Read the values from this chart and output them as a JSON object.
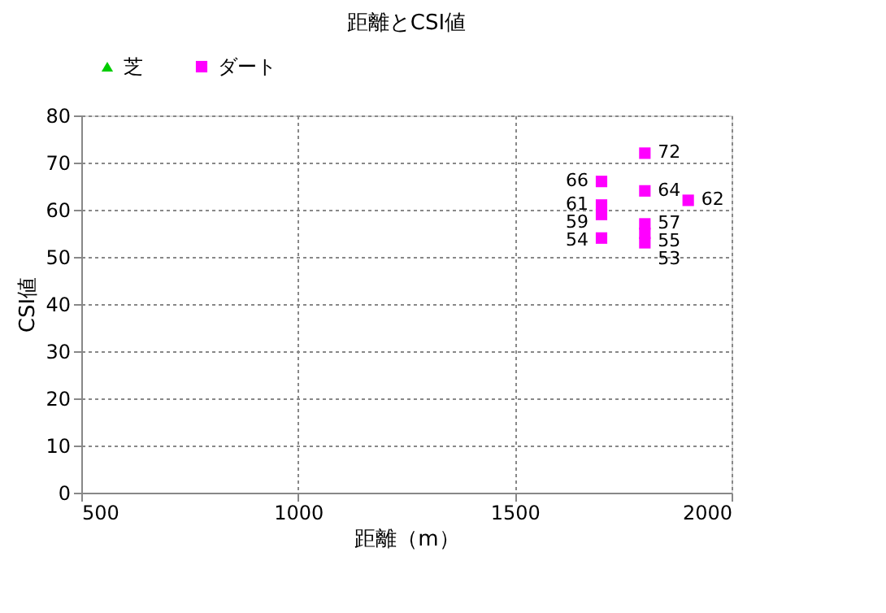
{
  "chart_data": {
    "type": "scatter",
    "title": "距離とCSI値",
    "xlabel": "距離（m）",
    "ylabel": "CSI値",
    "xlim": [
      500,
      2000
    ],
    "xticks": [
      500,
      1000,
      1500,
      2000
    ],
    "ylim": [
      0,
      80
    ],
    "yticks": [
      0,
      10,
      20,
      30,
      40,
      50,
      60,
      70,
      80
    ],
    "grid": true,
    "legend": "top left",
    "data_labels": true,
    "series": [
      {
        "name": "芝",
        "color": "#00cc00",
        "marker": "triangle"
      },
      {
        "name": "ダート",
        "color": "#ff00ff",
        "marker": "square",
        "x": [
          1700,
          1700,
          1700,
          1700,
          1800,
          1800,
          1800,
          1800,
          1800,
          1900
        ],
        "values": [
          66,
          61,
          59,
          54,
          72,
          64,
          57,
          55,
          53,
          62
        ]
      }
    ]
  }
}
